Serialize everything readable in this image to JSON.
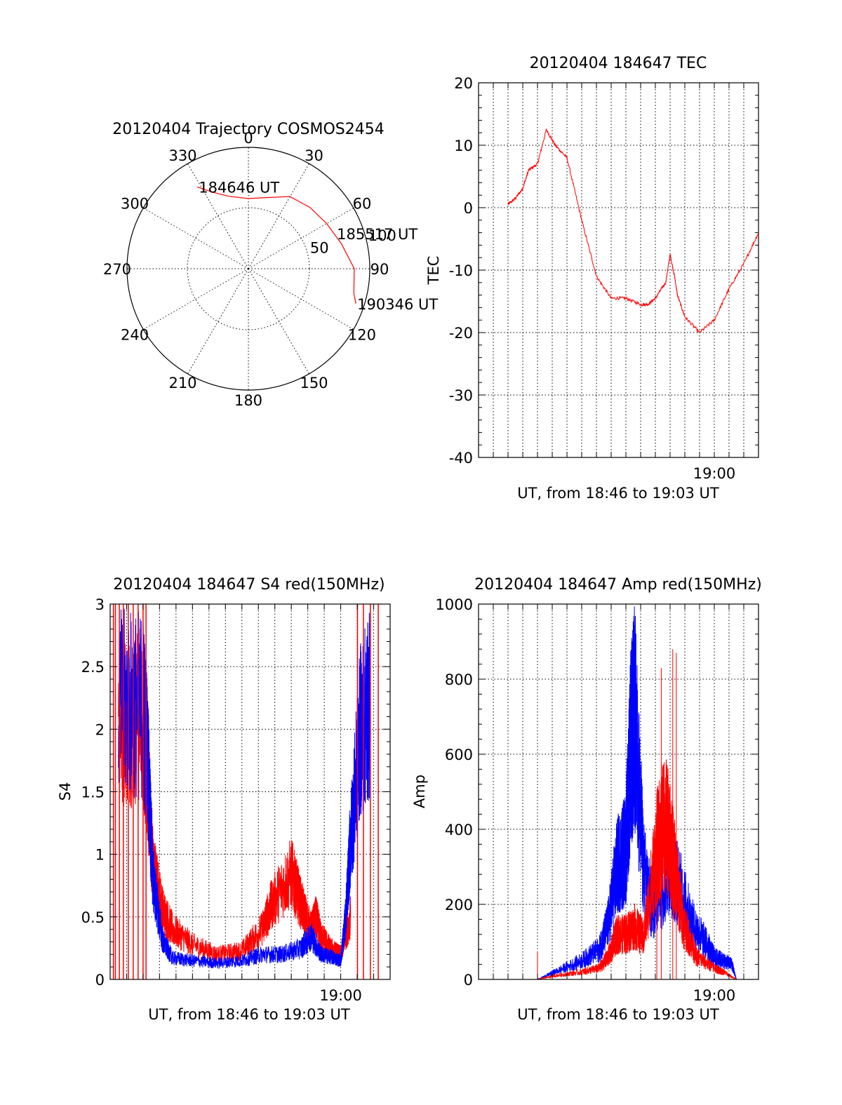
{
  "colors": {
    "red": "#ff0000",
    "blue": "#0000ff",
    "axis": "#000000"
  },
  "chart_data": [
    {
      "id": "trajectory",
      "type": "polar",
      "title": "20120404 Trajectory COSMOS2454",
      "azimuth_labels": [
        "0",
        "30",
        "60",
        "90",
        "120",
        "150",
        "180",
        "210",
        "240",
        "270",
        "300",
        "330"
      ],
      "radial_ticks": [
        {
          "value": 50,
          "label": "50"
        },
        {
          "value": 100,
          "label": "100"
        }
      ],
      "rlim": [
        0,
        100
      ],
      "series": [
        {
          "color": "#ff0000",
          "points_az_zd": [
            [
              -32,
              81
            ],
            [
              -25,
              71
            ],
            [
              -15,
              63
            ],
            [
              0,
              59
            ],
            [
              15,
              62
            ],
            [
              30,
              70
            ],
            [
              45,
              73
            ],
            [
              60,
              76
            ],
            [
              75,
              81
            ],
            [
              90,
              89
            ],
            [
              103,
              91
            ],
            [
              108,
              95
            ]
          ]
        }
      ],
      "annotations": [
        {
          "text": "184646 UT",
          "at_az_zd": [
            -32,
            81
          ]
        },
        {
          "text": "185517 UT",
          "at_az_zd": [
            68,
            79
          ]
        },
        {
          "text": "190346 UT",
          "at_az_zd": [
            108,
            95
          ]
        }
      ],
      "grid": true
    },
    {
      "id": "tec",
      "type": "line",
      "title": "20120404 184647 TEC",
      "ylabel": "TEC",
      "xlabel": "UT, from 18:46 to 19:03 UT",
      "ylim": [
        -40,
        20
      ],
      "yticks": [
        20,
        10,
        0,
        -10,
        -20,
        -30,
        -40
      ],
      "xticks": [
        {
          "value": 19.0,
          "label": "19:00"
        }
      ],
      "xlim": [
        18.7333,
        19.05
      ],
      "grid": true,
      "series": [
        {
          "color": "#ff0000",
          "x": [
            18.7667,
            18.775,
            18.783,
            18.79,
            18.8,
            18.81,
            18.82,
            18.8333,
            18.85,
            18.8667,
            18.8833,
            18.9,
            18.9167,
            18.925,
            18.9333,
            18.945,
            18.95,
            18.955,
            18.9583,
            18.9667,
            18.9833,
            19.0,
            19.0167,
            19.0333,
            19.05
          ],
          "y": [
            0.5,
            1.5,
            3,
            6,
            7,
            12.5,
            10,
            8,
            -2,
            -11,
            -14.5,
            -14.5,
            -15.5,
            -15.5,
            -14.5,
            -12,
            -7.5,
            -11,
            -14,
            -17.5,
            -20,
            -18,
            -13,
            -9,
            -4
          ]
        }
      ]
    },
    {
      "id": "s4",
      "type": "line",
      "title": "20120404 184647 S4 red(150MHz)",
      "ylabel": "S4",
      "xlabel": "UT, from 18:46 to 19:03 UT",
      "ylim": [
        0,
        3
      ],
      "yticks": [
        "0",
        "0.5",
        "1",
        "1.5",
        "2",
        "2.5",
        "3"
      ],
      "xticks": [
        {
          "value": 19.0,
          "label": "19:00"
        }
      ],
      "xlim": [
        18.7667,
        19.05
      ],
      "grid": true,
      "series": [
        {
          "color": "#ff0000",
          "x": [
            18.775,
            18.8,
            18.805,
            18.81,
            18.82,
            18.83,
            18.85,
            18.875,
            18.9,
            18.92,
            18.93,
            18.95,
            18.96,
            18.97,
            18.975,
            18.98,
            18.99,
            19.0,
            19.01
          ],
          "y": [
            2.1,
            2.1,
            1.6,
            0.9,
            0.55,
            0.4,
            0.28,
            0.2,
            0.23,
            0.4,
            0.6,
            0.85,
            0.6,
            0.4,
            0.5,
            0.35,
            0.25,
            0.2,
            0.5
          ]
        },
        {
          "color": "#0000ff",
          "x": [
            18.775,
            18.8,
            18.805,
            18.81,
            18.82,
            18.83,
            18.85,
            18.875,
            18.9,
            18.92,
            18.94,
            18.96,
            18.97,
            18.98,
            18.99,
            19.0,
            19.005,
            19.01,
            19.02,
            19.03
          ],
          "y": [
            2.2,
            2.2,
            1.7,
            0.8,
            0.3,
            0.17,
            0.15,
            0.13,
            0.15,
            0.2,
            0.2,
            0.25,
            0.35,
            0.2,
            0.18,
            0.15,
            0.5,
            1.1,
            2.0,
            2.2
          ]
        }
      ]
    },
    {
      "id": "amp",
      "type": "line",
      "title": "20120404 184647 Amp red(150MHz)",
      "ylabel": "Amp",
      "xlabel": "UT, from 18:46 to 19:03 UT",
      "ylim": [
        0,
        1000
      ],
      "yticks": [
        0,
        200,
        400,
        600,
        800,
        1000
      ],
      "xticks": [
        {
          "value": 19.0,
          "label": "19:00"
        }
      ],
      "xlim": [
        18.7333,
        19.05
      ],
      "grid": true,
      "series": [
        {
          "color": "#0000ff",
          "x": [
            18.75,
            18.8,
            18.82,
            18.85,
            18.87,
            18.88,
            18.89,
            18.9,
            18.905,
            18.91,
            18.92,
            18.93,
            18.95,
            18.96,
            18.975,
            18.99,
            19.0,
            19.01,
            19.02,
            19.025,
            19.05
          ],
          "y": [
            0,
            0,
            20,
            50,
            80,
            150,
            300,
            350,
            600,
            700,
            300,
            180,
            300,
            250,
            150,
            100,
            60,
            50,
            40,
            0,
            0
          ]
        },
        {
          "color": "#ff0000",
          "x": [
            18.75,
            18.8,
            18.82,
            18.85,
            18.87,
            18.88,
            18.89,
            18.9,
            18.91,
            18.92,
            18.935,
            18.945,
            18.955,
            18.965,
            18.98,
            19.0,
            19.01,
            19.025,
            19.05
          ],
          "y": [
            0,
            0,
            10,
            20,
            30,
            60,
            120,
            120,
            140,
            110,
            350,
            420,
            300,
            150,
            60,
            30,
            20,
            0,
            0
          ]
        }
      ]
    }
  ]
}
